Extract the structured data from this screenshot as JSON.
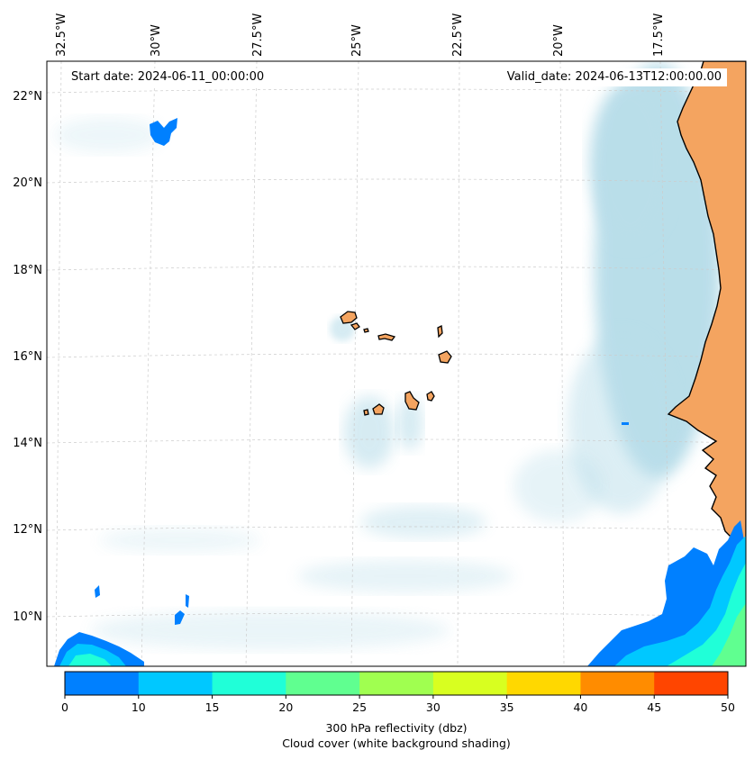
{
  "map": {
    "start_date": "Start date: 2024-06-11_00:00:00",
    "valid_date": "Valid_date: 2024-06-13T12:00:00.00",
    "longitude_labels": [
      "32.5°W",
      "30°W",
      "27.5°W",
      "25°W",
      "22.5°W",
      "20°W",
      "17.5°W"
    ],
    "latitude_labels": [
      "22°N",
      "20°N",
      "18°N",
      "16°N",
      "14°N",
      "12°N",
      "10°N"
    ],
    "land_color": "#f4a460",
    "coastline_color": "#000000",
    "cloud_shade_color": "#add8e6",
    "gridline_color": "#cccccc"
  },
  "colorbar": {
    "ticks": [
      "0",
      "10",
      "15",
      "20",
      "25",
      "30",
      "35",
      "40",
      "45",
      "50"
    ],
    "colors": [
      "#0080ff",
      "#00c8ff",
      "#20ffd8",
      "#60ff90",
      "#a0ff50",
      "#d8ff20",
      "#ffd800",
      "#ff8c00",
      "#ff4500"
    ],
    "label_line1": "300 hPa reflectivity (dbz)",
    "label_line2": "Cloud cover (white background shading)"
  }
}
